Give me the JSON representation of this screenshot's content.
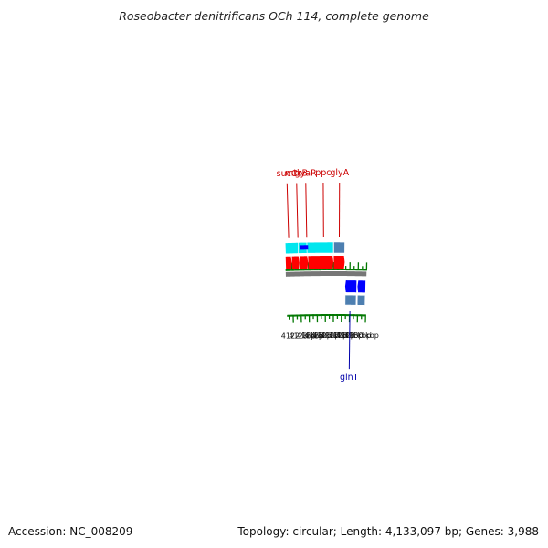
{
  "title": "Roseobacter denitrificans OCh 114, complete genome",
  "footer": {
    "accession": "Accession: NC_008209",
    "summary": "Topology: circular; Length: 4,133,097 bp; Genes: 3,988"
  },
  "colors": {
    "cds_forward": "#ff0000",
    "cds_reverse": "#0000ff",
    "gene_forward": "#00e6ee",
    "gene_reverse": "#4d7fb0",
    "label_forward": "#cc0000",
    "label_reverse": "#0000aa",
    "tick": "#007700",
    "backbone": "#777777"
  },
  "scale": {
    "unit": "kbp",
    "kbp_values": [
      4122,
      4123,
      4124,
      4125,
      4126,
      4127,
      4128,
      4129,
      4130
    ],
    "labels": [
      "4122 kbp",
      "4123 kbp",
      "4124 kbp",
      "4125 kbp",
      "4126 kbp",
      "4127 kbp",
      "4128 kbp",
      "4129 kbp",
      "4130 kbp"
    ]
  },
  "gene_labels": [
    {
      "name": "sucC",
      "strand": "forward",
      "position_kbp": 4121.73
    },
    {
      "name": "mtkB",
      "strand": "forward",
      "position_kbp": 4122.82
    },
    {
      "name": "gyaR",
      "strand": "forward",
      "position_kbp": 4123.86
    },
    {
      "name": "ppc",
      "strand": "forward",
      "position_kbp": 4125.85
    },
    {
      "name": "glyA",
      "strand": "forward",
      "position_kbp": 4127.7
    },
    {
      "name": "glnT",
      "strand": "reverse",
      "position_kbp": 4129.05
    }
  ],
  "genes": [
    {
      "strand": "forward",
      "start_kbp": 4121.3,
      "end_kbp": 4122.83,
      "type": "gene"
    },
    {
      "strand": "forward",
      "start_kbp": 4122.83,
      "end_kbp": 4123.86,
      "type": "gene"
    },
    {
      "strand": "forward",
      "start_kbp": 4123.87,
      "end_kbp": 4127.0,
      "type": "gene"
    },
    {
      "strand": "forward",
      "start_kbp": 4127.05,
      "end_kbp": 4128.35,
      "type": "gene_alt"
    },
    {
      "strand": "reverse",
      "start_kbp": 4128.45,
      "end_kbp": 4129.8,
      "type": "gene_alt"
    },
    {
      "strand": "reverse",
      "start_kbp": 4129.95,
      "end_kbp": 4130.9,
      "type": "gene_alt"
    }
  ],
  "cds": [
    {
      "strand": "forward",
      "start_kbp": 4121.3,
      "end_kbp": 4122.02
    },
    {
      "strand": "forward",
      "start_kbp": 4122.05,
      "end_kbp": 4122.93
    },
    {
      "strand": "forward",
      "start_kbp": 4122.95,
      "end_kbp": 4123.96
    },
    {
      "strand": "forward",
      "start_kbp": 4123.99,
      "end_kbp": 4127.0
    },
    {
      "strand": "forward",
      "start_kbp": 4127.05,
      "end_kbp": 4128.36
    },
    {
      "strand": "forward",
      "start_kbp": 4122.99,
      "end_kbp": 4124.0,
      "highlight": true
    },
    {
      "strand": "reverse",
      "start_kbp": 4128.44,
      "end_kbp": 4129.81
    },
    {
      "strand": "reverse",
      "start_kbp": 4129.94,
      "end_kbp": 4130.9
    }
  ]
}
